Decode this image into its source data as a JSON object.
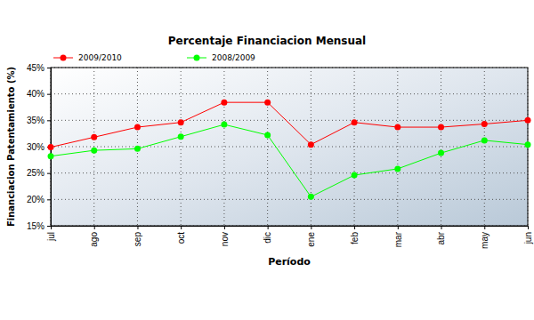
{
  "chart_data": {
    "type": "line",
    "title": "Percentaje Financiacion Mensual",
    "x_label": "Período",
    "y_label": "Financiacion Patentamiento (%)",
    "categories": [
      "jul",
      "ago",
      "sep",
      "oct",
      "nov",
      "dic",
      "ene",
      "feb",
      "mar",
      "abr",
      "may",
      "jun"
    ],
    "series": [
      {
        "name": "2009/2010",
        "color": "#ff0000",
        "marker": "circle",
        "values": [
          29.9,
          31.8,
          33.7,
          34.6,
          38.4,
          38.4,
          30.4,
          34.6,
          33.7,
          33.7,
          34.3,
          35.0
        ]
      },
      {
        "name": "2008/2009",
        "color": "#00ff00",
        "marker": "circle",
        "values": [
          28.2,
          29.3,
          29.6,
          31.9,
          34.2,
          32.2,
          20.5,
          24.6,
          25.8,
          28.8,
          31.2,
          30.4
        ]
      }
    ],
    "ylim": [
      15,
      45
    ],
    "yticks": [
      {
        "value": 15,
        "label": "15%"
      },
      {
        "value": 20,
        "label": "20%"
      },
      {
        "value": 25,
        "label": "25%"
      },
      {
        "value": 30,
        "label": "30%"
      },
      {
        "value": 35,
        "label": "35%"
      },
      {
        "value": 40,
        "label": "40%"
      },
      {
        "value": 45,
        "label": "45%"
      }
    ],
    "grid": true,
    "legend": "top-left"
  }
}
